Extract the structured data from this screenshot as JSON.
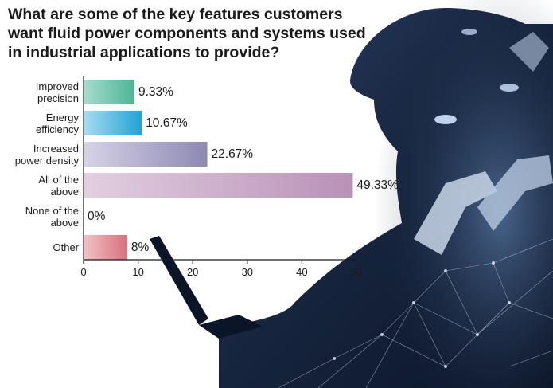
{
  "chart_data": {
    "type": "bar",
    "orientation": "horizontal",
    "title": "What are some of the key features customers want fluid power components and systems used in industrial applications to provide?",
    "categories": [
      [
        "Improved",
        "precision"
      ],
      [
        "Energy",
        "efficiency"
      ],
      [
        "Increased",
        "power density"
      ],
      [
        "All of the",
        "above"
      ],
      [
        "None of the",
        "above"
      ],
      [
        "Other"
      ]
    ],
    "values": [
      9.33,
      10.67,
      22.67,
      49.33,
      0,
      8
    ],
    "value_labels": [
      "9.33%",
      "10.67%",
      "22.67%",
      "49.33%",
      "0%",
      "8%"
    ],
    "xlim": [
      0,
      50
    ],
    "xticks": [
      "0",
      "10",
      "20",
      "30",
      "40",
      "50"
    ],
    "xlabel": "",
    "ylabel": "",
    "grid": false,
    "bar_colors": [
      [
        "#a8dccf",
        "#4db596"
      ],
      [
        "#a9dcef",
        "#1fa3d6"
      ],
      [
        "#d6d3e6",
        "#8d88b3"
      ],
      [
        "#e2cfe0",
        "#b891b8"
      ],
      [
        "#cccccc",
        "#999999"
      ],
      [
        "#f1c3c6",
        "#d9707b"
      ]
    ]
  },
  "colors": {
    "background_photo": "#16243d",
    "photo_highlight": "#8fb4dc",
    "text": "#1a1a1a"
  }
}
